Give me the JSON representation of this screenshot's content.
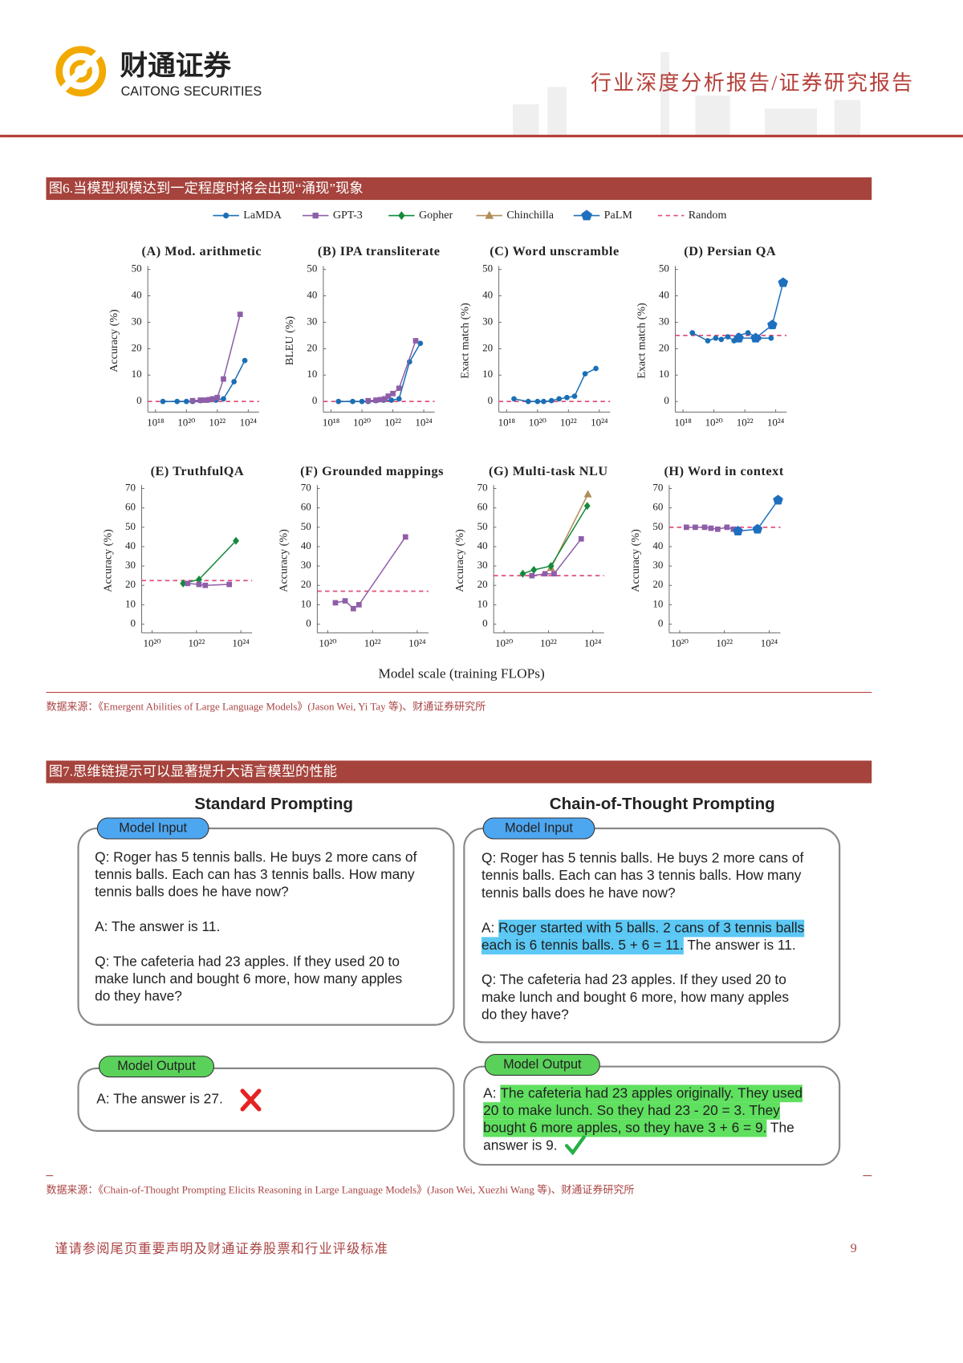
{
  "header": {
    "logo_cn": "财通证券",
    "logo_en": "CAITONG SECURITIES",
    "report_type": "行业深度分析报告/证券研究报告"
  },
  "figure6": {
    "caption": "图6.当模型规模达到一定程度时将会出现“涌现”现象",
    "legend": [
      {
        "name": "LaMDA",
        "color": "#1a6fb5",
        "marker": "circle"
      },
      {
        "name": "GPT-3",
        "color": "#8e5ea8",
        "marker": "square"
      },
      {
        "name": "Gopher",
        "color": "#138a3c",
        "marker": "diamond"
      },
      {
        "name": "Chinchilla",
        "color": "#b08d57",
        "marker": "triangle"
      },
      {
        "name": "PaLM",
        "color": "#1f6fbf",
        "marker": "pentagon"
      },
      {
        "name": "Random",
        "color": "#e0507a",
        "style": "dashed"
      }
    ],
    "xlabel": "Model scale (training FLOPs)",
    "source": "数据来源：《Emergent Abilities of Large Language Models》(Jason Wei, Yi Tay 等)、财通证券研究所"
  },
  "chart_data": [
    {
      "type": "line",
      "title": "(A) Mod. arithmetic",
      "ylabel": "Accuracy (%)",
      "xscale": "log",
      "xlim": [
        3.16e+17,
        5e+24
      ],
      "xticks": [
        {
          "value": 1e+18,
          "label": "10¹⁸"
        },
        {
          "value": 1e+20,
          "label": "10²⁰"
        },
        {
          "value": 1e+22,
          "label": "10²²"
        },
        {
          "value": 1e+24,
          "label": "10²⁴"
        }
      ],
      "ylim": [
        -4,
        50
      ],
      "yticks": [
        0,
        10,
        20,
        30,
        40,
        50
      ],
      "random_baseline": 0,
      "series": [
        {
          "name": "LaMDA",
          "color": "#1a6fb5",
          "marker": "circle",
          "x": [
            3e+18,
            2.5e+19,
            1e+20,
            2.5e+20,
            8e+20,
            2.5e+21,
            8e+21,
            2.5e+22,
            1.2e+23,
            6e+23
          ],
          "values": [
            0,
            0,
            0,
            0,
            0.3,
            0.5,
            0.5,
            1,
            7.5,
            15.5
          ]
        },
        {
          "name": "GPT-3",
          "color": "#8e5ea8",
          "marker": "square",
          "x": [
            2.5e+20,
            8e+20,
            1.6e+21,
            3e+21,
            5e+21,
            1e+22,
            2.5e+22,
            3e+23
          ],
          "values": [
            0.3,
            0.5,
            0.5,
            0.7,
            1,
            1.5,
            8.5,
            33
          ]
        }
      ]
    },
    {
      "type": "line",
      "title": "(B) IPA transliterate",
      "ylabel": "BLEU (%)",
      "xscale": "log",
      "xlim": [
        3.16e+17,
        5e+24
      ],
      "xticks": [
        {
          "value": 1e+18,
          "label": "10¹⁸"
        },
        {
          "value": 1e+20,
          "label": "10²⁰"
        },
        {
          "value": 1e+22,
          "label": "10²²"
        },
        {
          "value": 1e+24,
          "label": "10²⁴"
        }
      ],
      "ylim": [
        -4,
        50
      ],
      "yticks": [
        0,
        10,
        20,
        30,
        40,
        50
      ],
      "random_baseline": 0,
      "series": [
        {
          "name": "LaMDA",
          "color": "#1a6fb5",
          "marker": "circle",
          "x": [
            3e+18,
            2.5e+19,
            1e+20,
            2.5e+20,
            8e+20,
            2.5e+21,
            8e+21,
            2.5e+22,
            1.2e+23,
            6e+23
          ],
          "values": [
            0,
            0,
            0,
            0,
            0.3,
            0.5,
            0.5,
            1,
            15,
            22
          ]
        },
        {
          "name": "GPT-3",
          "color": "#8e5ea8",
          "marker": "square",
          "x": [
            2.5e+20,
            8e+20,
            1.6e+21,
            3e+21,
            5e+21,
            1e+22,
            2.5e+22,
            3e+23
          ],
          "values": [
            0.3,
            0.5,
            0.7,
            1,
            2,
            3,
            5,
            23
          ]
        }
      ]
    },
    {
      "type": "line",
      "title": "(C) Word unscramble",
      "ylabel": "Exact match (%)",
      "xscale": "log",
      "xlim": [
        3.16e+17,
        5e+24
      ],
      "xticks": [
        {
          "value": 1e+18,
          "label": "10¹⁸"
        },
        {
          "value": 1e+20,
          "label": "10²⁰"
        },
        {
          "value": 1e+22,
          "label": "10²²"
        },
        {
          "value": 1e+24,
          "label": "10²⁴"
        }
      ],
      "ylim": [
        -4,
        50
      ],
      "yticks": [
        0,
        10,
        20,
        30,
        40,
        50
      ],
      "random_baseline": 0,
      "series": [
        {
          "name": "LaMDA",
          "color": "#1a6fb5",
          "marker": "circle",
          "x": [
            3e+18,
            2.5e+19,
            1e+20,
            2.5e+20,
            8e+20,
            2.5e+21,
            8e+21,
            2.5e+22,
            1.2e+23,
            6e+23
          ],
          "values": [
            1,
            0,
            0,
            0,
            0.3,
            1,
            1.5,
            2,
            10.5,
            12.5
          ]
        }
      ]
    },
    {
      "type": "line",
      "title": "(D) Persian QA",
      "ylabel": "Exact match (%)",
      "xscale": "log",
      "xlim": [
        3.16e+17,
        5e+24
      ],
      "xticks": [
        {
          "value": 1e+18,
          "label": "10¹⁸"
        },
        {
          "value": 1e+20,
          "label": "10²⁰"
        },
        {
          "value": 1e+22,
          "label": "10²²"
        },
        {
          "value": 1e+24,
          "label": "10²⁴"
        }
      ],
      "ylim": [
        -4,
        50
      ],
      "yticks": [
        0,
        10,
        20,
        30,
        40,
        50
      ],
      "random_baseline": 25,
      "series": [
        {
          "name": "LaMDA",
          "color": "#1a6fb5",
          "marker": "circle",
          "x": [
            4e+18,
            4e+19,
            1.3e+20,
            3e+20,
            8e+20,
            2e+21,
            4e+21,
            1.6e+22,
            8e+22,
            5e+23
          ],
          "values": [
            26,
            23,
            24,
            23.5,
            24.5,
            23,
            25,
            26,
            24,
            24
          ]
        },
        {
          "name": "PaLM",
          "color": "#1f6fbf",
          "marker": "pentagon",
          "x": [
            4e+21,
            5e+22,
            6e+23,
            3e+24
          ],
          "values": [
            24,
            24,
            29,
            45
          ]
        }
      ]
    },
    {
      "type": "line",
      "title": "(E) TruthfulQA",
      "ylabel": "Accuracy (%)",
      "xscale": "log",
      "xlim": [
        3.4e+19,
        3.2e+24
      ],
      "xticks": [
        {
          "value": 1e+20,
          "label": "10²⁰"
        },
        {
          "value": 1e+22,
          "label": "10²²"
        },
        {
          "value": 1e+24,
          "label": "10²⁴"
        }
      ],
      "ylim": [
        -4.5,
        70
      ],
      "yticks": [
        0,
        10,
        20,
        30,
        40,
        50,
        60,
        70
      ],
      "random_baseline": 22.5,
      "series": [
        {
          "name": "Gopher",
          "color": "#138a3c",
          "marker": "diamond",
          "x": [
            2.5e+21,
            1.3e+22,
            6e+23
          ],
          "values": [
            21,
            23,
            43
          ]
        },
        {
          "name": "GPT-3",
          "color": "#8e5ea8",
          "marker": "square",
          "x": [
            4e+21,
            1.3e+22,
            2.5e+22,
            3e+23
          ],
          "values": [
            21,
            20.5,
            20,
            20.5
          ]
        }
      ]
    },
    {
      "type": "line",
      "title": "(F) Grounded mappings",
      "ylabel": "Accuracy (%)",
      "xscale": "log",
      "xlim": [
        3.4e+19,
        3.2e+24
      ],
      "xticks": [
        {
          "value": 1e+20,
          "label": "10²⁰"
        },
        {
          "value": 1e+22,
          "label": "10²²"
        },
        {
          "value": 1e+24,
          "label": "10²⁴"
        }
      ],
      "ylim": [
        -4.5,
        70
      ],
      "yticks": [
        0,
        10,
        20,
        30,
        40,
        50,
        60,
        70
      ],
      "random_baseline": 17,
      "series": [
        {
          "name": "GPT-3",
          "color": "#8e5ea8",
          "marker": "square",
          "x": [
            2.2e+20,
            6e+20,
            1.4e+21,
            2.5e+21,
            3e+23
          ],
          "values": [
            11,
            12,
            8,
            10,
            45
          ]
        }
      ]
    },
    {
      "type": "line",
      "title": "(G) Multi-task NLU",
      "ylabel": "Accuracy (%)",
      "xscale": "log",
      "xlim": [
        3.4e+19,
        3.2e+24
      ],
      "xticks": [
        {
          "value": 1e+20,
          "label": "10²⁰"
        },
        {
          "value": 1e+22,
          "label": "10²²"
        },
        {
          "value": 1e+24,
          "label": "10²⁴"
        }
      ],
      "ylim": [
        -4.5,
        70
      ],
      "yticks": [
        0,
        10,
        20,
        30,
        40,
        50,
        60,
        70
      ],
      "random_baseline": 25,
      "series": [
        {
          "name": "Chinchilla",
          "color": "#b08d57",
          "marker": "triangle",
          "x": [
            1.3e+22,
            6e+23
          ],
          "values": [
            29,
            67
          ]
        },
        {
          "name": "Gopher",
          "color": "#138a3c",
          "marker": "diamond",
          "x": [
            7e+20,
            2.2e+21,
            1.3e+22,
            5.6e+23
          ],
          "values": [
            26,
            28,
            30,
            61
          ]
        },
        {
          "name": "GPT-3",
          "color": "#8e5ea8",
          "marker": "square",
          "x": [
            1.8e+21,
            7e+21,
            1.8e+22,
            3e+23
          ],
          "values": [
            25,
            26,
            26,
            44
          ]
        }
      ]
    },
    {
      "type": "line",
      "title": "(H) Word in context",
      "ylabel": "Accuracy (%)",
      "xscale": "log",
      "xlim": [
        3.4e+19,
        3.2e+24
      ],
      "xticks": [
        {
          "value": 1e+20,
          "label": "10²⁰"
        },
        {
          "value": 1e+22,
          "label": "10²²"
        },
        {
          "value": 1e+24,
          "label": "10²⁴"
        }
      ],
      "ylim": [
        -4.5,
        70
      ],
      "yticks": [
        0,
        10,
        20,
        30,
        40,
        50,
        60,
        70
      ],
      "random_baseline": 50,
      "series": [
        {
          "name": "GPT-3",
          "color": "#8e5ea8",
          "marker": "square",
          "x": [
            2e+20,
            5e+20,
            1.3e+21,
            2.5e+21,
            5e+21,
            1.3e+22,
            2.5e+22
          ],
          "values": [
            50,
            50,
            50,
            49.5,
            49,
            50,
            49
          ]
        },
        {
          "name": "PaLM",
          "color": "#1f6fbf",
          "marker": "pentagon",
          "x": [
            4e+22,
            3e+23,
            2.5e+24
          ],
          "values": [
            48,
            49,
            64
          ]
        }
      ]
    }
  ],
  "figure7": {
    "caption": "图7.思维链提示可以显著提升大语言模型的性能",
    "standard": {
      "title": "Standard Prompting",
      "input_label": "Model Input",
      "input_paragraphs": [
        [
          "Q: Roger has 5 tennis balls. He buys 2 more cans of",
          "tennis balls. Each can has 3 tennis balls. How many",
          "tennis balls does he have now?"
        ],
        [
          "A: The answer is 11."
        ],
        [
          "Q: The cafeteria had 23 apples. If they used 20 to",
          "make lunch and bought 6 more, how many apples",
          "do they have?"
        ]
      ],
      "output_label": "Model Output",
      "output_lines": [
        "A: The answer is 27."
      ]
    },
    "cot": {
      "title": "Chain-of-Thought Prompting",
      "input_label": "Model Input",
      "input_paragraphs": [
        [
          "Q: Roger has 5 tennis balls. He buys 2 more cans of",
          "tennis balls. Each can has 3 tennis balls. How many",
          "tennis balls does he have now?"
        ],
        [
          [
            {
              "text": "A: "
            },
            {
              "text": "Roger started with 5 balls. 2 cans of 3 tennis balls",
              "highlight": "#5bc8f5"
            }
          ],
          [
            {
              "text": "each is 6 tennis balls. 5 + 6 = 11.",
              "highlight": "#5bc8f5"
            },
            {
              "text": " The answer is 11."
            }
          ]
        ],
        [
          "Q: The cafeteria had 23 apples. If they used 20 to",
          "make lunch and bought 6 more, how many apples",
          "do they have?"
        ]
      ],
      "output_label": "Model Output",
      "output_lines": [
        [
          {
            "text": "A: "
          },
          {
            "text": "The cafeteria had 23 apples originally. They used",
            "highlight": "#5fe05f"
          }
        ],
        [
          {
            "text": "20 to make lunch. So they had 23 - 20 = 3. They",
            "highlight": "#5fe05f"
          }
        ],
        [
          {
            "text": "bought 6 more apples, so they have 3 + 6 = 9.",
            "highlight": "#5fe05f"
          },
          {
            "text": " The"
          }
        ],
        [
          {
            "text": "answer is 9."
          }
        ]
      ]
    },
    "source": "数据来源：《Chain-of-Thought Prompting Elicits Reasoning in Large Language Models》(Jason Wei, Xuezhi Wang 等)、财通证券研究所"
  },
  "footer": {
    "disclaimer": "谨请参阅尾页重要声明及财通证券股票和行业评级标准",
    "page": "9"
  }
}
